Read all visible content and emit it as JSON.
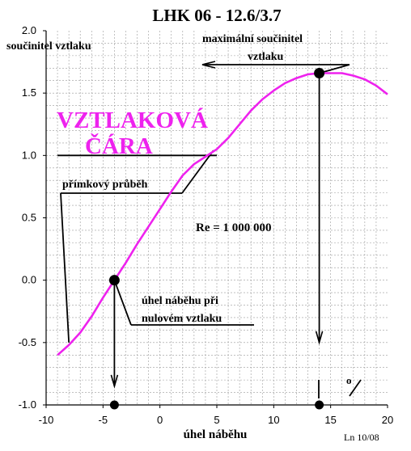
{
  "chart_data": {
    "type": "line",
    "title": "LHK  06 - 12.6/3.7",
    "xlabel": "úhel náběhu",
    "ylabel": "součinitel vztlaku",
    "xlim": [
      -10,
      20
    ],
    "ylim": [
      -1.0,
      2.0
    ],
    "grid": true,
    "x_ticks": [
      "-10",
      "-5",
      "0",
      "5",
      "10",
      "15",
      "20"
    ],
    "y_ticks": [
      "-1.0",
      "-0.5",
      "0.0",
      "0.5",
      "1.0",
      "1.5",
      "2.0"
    ],
    "series": [
      {
        "name": "VZTLAKOVÁ ČÁRA",
        "color": "#ee22ee",
        "points": [
          [
            -9.0,
            -0.6
          ],
          [
            -8.0,
            -0.52
          ],
          [
            -7.0,
            -0.42
          ],
          [
            -6.0,
            -0.29
          ],
          [
            -5.0,
            -0.14
          ],
          [
            -4.0,
            0.0
          ],
          [
            -3.0,
            0.14
          ],
          [
            -2.0,
            0.29
          ],
          [
            -1.0,
            0.43
          ],
          [
            0.0,
            0.57
          ],
          [
            1.0,
            0.71
          ],
          [
            2.0,
            0.84
          ],
          [
            3.0,
            0.93
          ],
          [
            4.0,
            0.99
          ],
          [
            5.0,
            1.05
          ],
          [
            6.0,
            1.14
          ],
          [
            7.0,
            1.25
          ],
          [
            8.0,
            1.36
          ],
          [
            9.0,
            1.45
          ],
          [
            10.0,
            1.52
          ],
          [
            11.0,
            1.58
          ],
          [
            12.0,
            1.62
          ],
          [
            13.0,
            1.65
          ],
          [
            14.0,
            1.66
          ],
          [
            15.0,
            1.66
          ],
          [
            16.0,
            1.66
          ],
          [
            17.0,
            1.64
          ],
          [
            18.0,
            1.61
          ],
          [
            19.0,
            1.56
          ],
          [
            20.0,
            1.49
          ]
        ]
      }
    ],
    "markers": [
      {
        "x": -4.0,
        "y": 0.0
      },
      {
        "x": 14.0,
        "y": 1.66
      },
      {
        "x": -4.0,
        "y": -1.0
      },
      {
        "x": 14.0,
        "y": -1.0
      }
    ],
    "annotations": {
      "curve_label_1": "VZTLAKOVÁ",
      "curve_label_2": "ČÁRA",
      "max_cl_1": "maximální součinitel",
      "max_cl_2": "vztlaku",
      "linear_part": "přímkový průběh",
      "reynolds": "Re = 1 000 000",
      "zero_lift_1": "úhel náběhu při",
      "zero_lift_2": "nulovém vztlaku",
      "degree_symbol": "o",
      "footer": "Ln 10/08"
    },
    "colors": {
      "grid": "#9a9a9a",
      "axis": "#000000",
      "curve": "#ee22ee",
      "text": "#000000"
    }
  }
}
